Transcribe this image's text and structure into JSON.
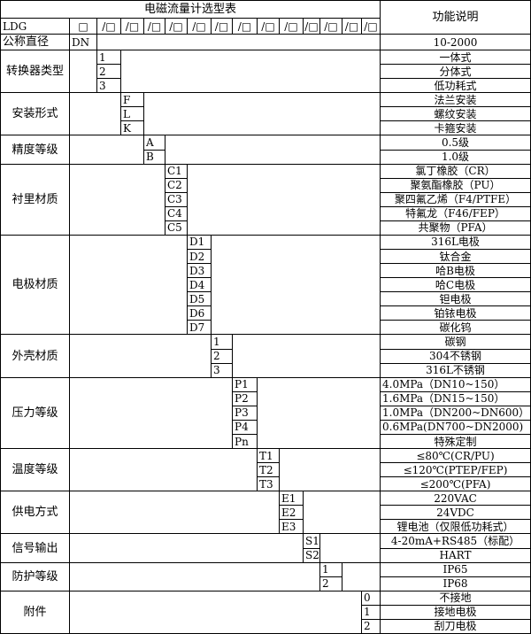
{
  "title": "电磁流量计选型表",
  "function_header": "功能说明",
  "model_row": {
    "prefix": "LDG",
    "first_box": "□",
    "slot_box": "/□",
    "slot_count": 13
  },
  "nominal_diameter": {
    "label": "公称直径",
    "code": "DN",
    "description": "10-2000"
  },
  "sections": [
    {
      "label": "转换器类型",
      "codes": [
        "1",
        "2",
        "3"
      ],
      "descriptions": [
        "一体式",
        "分体式",
        "低功耗式"
      ]
    },
    {
      "label": "安装形式",
      "codes": [
        "F",
        "L",
        "K"
      ],
      "descriptions": [
        "法兰安装",
        "螺纹安装",
        "卡箍安装"
      ]
    },
    {
      "label": "精度等级",
      "codes": [
        "A",
        "B"
      ],
      "descriptions": [
        "0.5级",
        "1.0级"
      ]
    },
    {
      "label": "衬里材质",
      "codes": [
        "C1",
        "C2",
        "C3",
        "C4",
        "C5"
      ],
      "descriptions": [
        "氯丁橡胶（CR）",
        "聚氨酯橡胶（PU）",
        "聚四氟乙烯（F4/PTFE）",
        "特氟龙（F46/FEP）",
        "共聚物（PFA）"
      ]
    },
    {
      "label": "电极材质",
      "codes": [
        "D1",
        "D2",
        "D3",
        "D4",
        "D5",
        "D6",
        "D7"
      ],
      "descriptions": [
        "316L电极",
        "钛合金",
        "哈B电极",
        "哈C电极",
        "钽电极",
        "铂铱电极",
        "碳化钨"
      ]
    },
    {
      "label": "外壳材质",
      "codes": [
        "1",
        "2",
        "3"
      ],
      "descriptions": [
        "碳钢",
        "304不锈钢",
        "316L不锈钢"
      ]
    },
    {
      "label": "压力等级",
      "codes": [
        "P1",
        "P2",
        "P3",
        "P4",
        "Pn"
      ],
      "descriptions": [
        "4.0MPa（DN10~150）",
        "1.6MPa（DN15~150）",
        "1.0MPa（DN200~DN600）",
        "0.6MPa(DN700~DN2000)",
        "特殊定制"
      ],
      "left_aligned": [
        true,
        true,
        true,
        true,
        false
      ]
    },
    {
      "label": "温度等级",
      "codes": [
        "T1",
        "T2",
        "T3"
      ],
      "descriptions": [
        "≤80℃(CR/PU)",
        "≤120℃(PTEP/FEP)",
        "≤200℃(PFA)"
      ]
    },
    {
      "label": "供电方式",
      "codes": [
        "E1",
        "E2",
        "E3"
      ],
      "descriptions": [
        "220VAC",
        "24VDC",
        "锂电池（仅限低功耗式）"
      ]
    },
    {
      "label": "信号输出",
      "codes": [
        "S1",
        "S2"
      ],
      "descriptions": [
        "4-20mA+RS485（标配）",
        "HART"
      ]
    },
    {
      "label": "防护等级",
      "codes": [
        "1",
        "2"
      ],
      "descriptions": [
        "IP65",
        "IP68"
      ]
    },
    {
      "label": "附件",
      "codes": [
        "0",
        "1",
        "2"
      ],
      "descriptions": [
        "不接地",
        "接地电极",
        "刮刀电极"
      ]
    }
  ]
}
